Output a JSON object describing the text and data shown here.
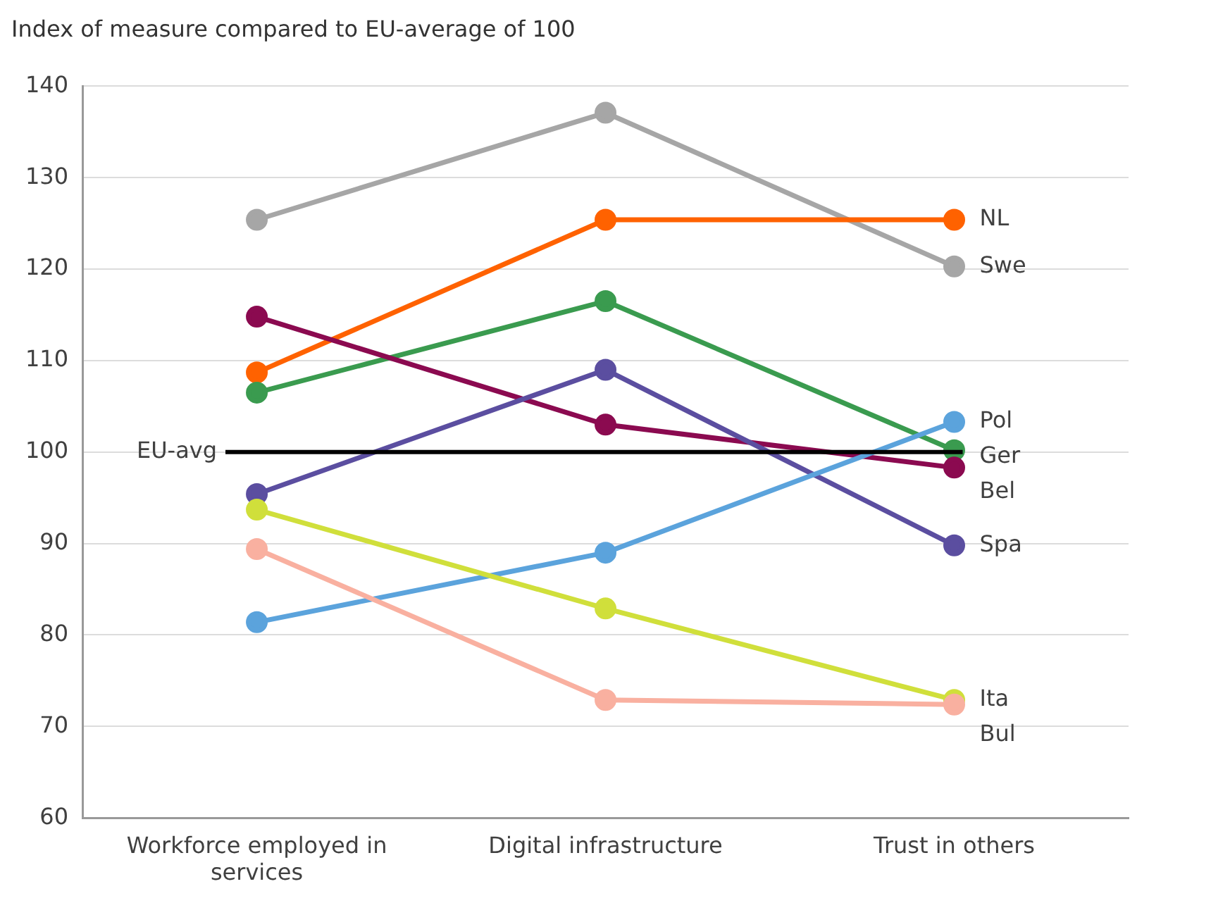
{
  "chart_data": {
    "type": "line",
    "title": "Index of measure compared to EU-average of 100",
    "categories": [
      "Workforce employed in services",
      "Digital infrastructure",
      "Trust in others"
    ],
    "series": [
      {
        "name": "Swe",
        "color": "#a6a6a6",
        "values": [
          125.4,
          137.1,
          120.3
        ]
      },
      {
        "name": "NL",
        "color": "#ff6200",
        "values": [
          108.7,
          125.4,
          125.4
        ]
      },
      {
        "name": "Ger",
        "color": "#3a9b4f",
        "values": [
          106.5,
          116.5,
          100.2
        ]
      },
      {
        "name": "Bel",
        "color": "#8b0a50",
        "values": [
          114.8,
          103,
          98.3
        ]
      },
      {
        "name": "Spa",
        "color": "#5b4ea0",
        "values": [
          95.4,
          109,
          89.8
        ]
      },
      {
        "name": "Pol",
        "color": "#5ba3dc",
        "values": [
          81.4,
          89,
          103.3
        ]
      },
      {
        "name": "Ita",
        "color": "#d0df3b",
        "values": [
          93.7,
          82.9,
          72.9
        ]
      },
      {
        "name": "Bul",
        "color": "#f9b0a0",
        "values": [
          89.4,
          72.9,
          72.4
        ]
      }
    ],
    "ylim": [
      60,
      140
    ],
    "yticks": [
      60,
      70,
      80,
      90,
      100,
      110,
      120,
      130,
      140
    ],
    "ref_lines": [
      {
        "axis": "y",
        "value": 100,
        "label": "EU-avg",
        "color": "#000000"
      }
    ],
    "grid": "y",
    "legend": false,
    "marker": "circle",
    "line_style": "solid"
  }
}
